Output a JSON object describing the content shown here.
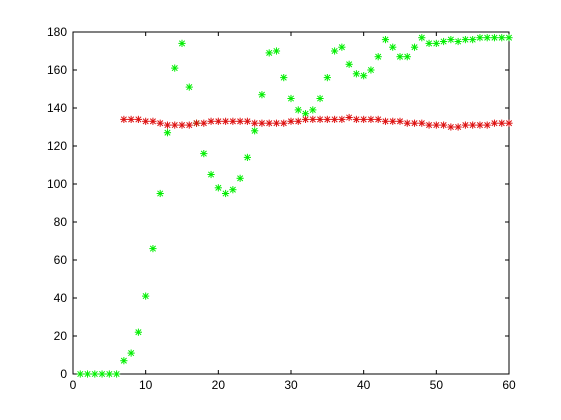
{
  "chart_data": {
    "type": "scatter",
    "title": "",
    "xlabel": "",
    "ylabel": "",
    "xlim": [
      0,
      60
    ],
    "ylim": [
      0,
      180
    ],
    "xticks": [
      "0",
      "10",
      "20",
      "30",
      "40",
      "50",
      "60"
    ],
    "yticks": [
      "0",
      "20",
      "40",
      "60",
      "80",
      "100",
      "120",
      "140",
      "160",
      "180"
    ],
    "grid": false,
    "legend": false,
    "marker": "asterisk",
    "series": [
      {
        "color": "#00ee00",
        "x": [
          1,
          2,
          3,
          4,
          5,
          6,
          7,
          8,
          9,
          10,
          11,
          12,
          13,
          14,
          15,
          16,
          17,
          18,
          19,
          20,
          21,
          22,
          23,
          24,
          25,
          26,
          27,
          28,
          29,
          30,
          31,
          32,
          33,
          34,
          35,
          36,
          37,
          38,
          39,
          40,
          41,
          42,
          43,
          44,
          45,
          46,
          47,
          48,
          49,
          50,
          51,
          52,
          53,
          54,
          55,
          56,
          57,
          58,
          59,
          60
        ],
        "y": [
          0,
          0,
          0,
          0,
          0,
          0,
          7,
          11,
          22,
          41,
          66,
          95,
          127,
          161,
          174,
          151,
          132,
          116,
          105,
          98,
          95,
          97,
          103,
          114,
          128,
          147,
          169,
          170,
          156,
          145,
          139,
          137,
          139,
          145,
          156,
          170,
          172,
          163,
          158,
          157,
          160,
          167,
          176,
          172,
          167,
          167,
          172,
          177,
          174,
          174,
          175,
          176,
          175,
          176,
          176,
          177,
          177,
          177,
          177,
          177
        ]
      },
      {
        "color": "#dd1111",
        "x": [
          7,
          8,
          9,
          10,
          11,
          12,
          13,
          14,
          15,
          16,
          17,
          18,
          19,
          20,
          21,
          22,
          23,
          24,
          25,
          26,
          27,
          28,
          29,
          30,
          31,
          32,
          33,
          34,
          35,
          36,
          37,
          38,
          39,
          40,
          41,
          42,
          43,
          44,
          45,
          46,
          47,
          48,
          49,
          50,
          51,
          52,
          53,
          54,
          55,
          56,
          57,
          58,
          59,
          60
        ],
        "y": [
          134,
          134,
          134,
          133,
          133,
          132,
          131,
          131,
          131,
          131,
          132,
          132,
          133,
          133,
          133,
          133,
          133,
          133,
          132,
          132,
          132,
          132,
          132,
          133,
          133,
          134,
          134,
          134,
          134,
          134,
          134,
          135,
          134,
          134,
          134,
          134,
          133,
          133,
          133,
          132,
          132,
          132,
          131,
          131,
          131,
          130,
          130,
          131,
          131,
          131,
          131,
          132,
          132,
          132
        ]
      }
    ]
  }
}
